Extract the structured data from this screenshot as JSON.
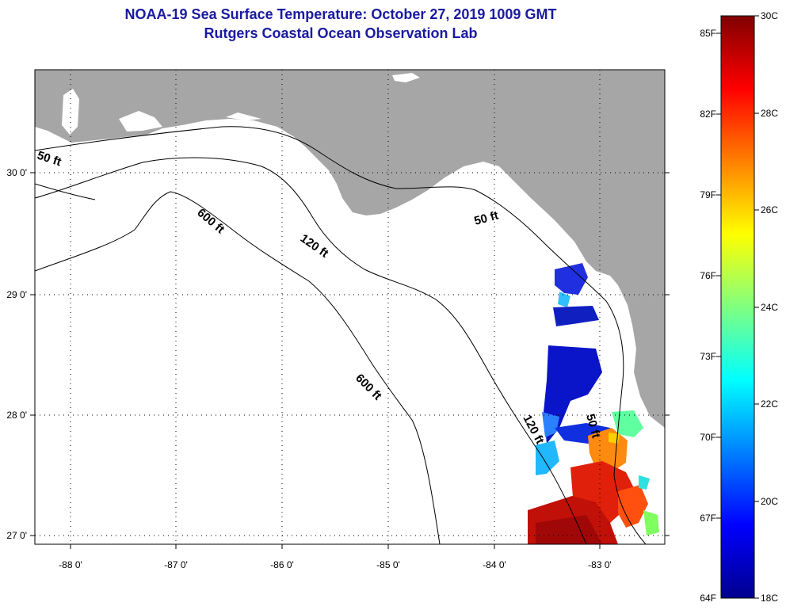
{
  "header": {
    "title": "NOAA-19 Sea Surface Temperature:  October 27, 2019 1009 GMT",
    "subtitle": "Rutgers Coastal Ocean Observation Lab"
  },
  "map": {
    "lon_labels": [
      "-88 0'",
      "-87 0'",
      "-86 0'",
      "-85 0'",
      "-84 0'",
      "-83 0'"
    ],
    "lat_labels": [
      "30 0'",
      "29 0'",
      "28 0'",
      "27 0'"
    ],
    "isobath_labels": [
      "50 ft",
      "600 ft",
      "120 ft",
      "50 ft",
      "600 ft",
      "120 ft",
      "50 ft"
    ],
    "colors": {
      "land": "#a6a6a6",
      "water": "#ffffff",
      "contour": "#000000"
    }
  },
  "colorbar": {
    "fahrenheit_labels": [
      "85F",
      "82F",
      "79F",
      "76F",
      "73F",
      "70F",
      "67F",
      "64F"
    ],
    "celsius_labels": [
      "30C",
      "28C",
      "26C",
      "24C",
      "22C",
      "20C",
      "18C"
    ],
    "colormap": [
      "#00008f",
      "#0000ff",
      "#0080ff",
      "#00ffff",
      "#80ff80",
      "#ffff00",
      "#ff8000",
      "#ff0000",
      "#800000"
    ]
  }
}
